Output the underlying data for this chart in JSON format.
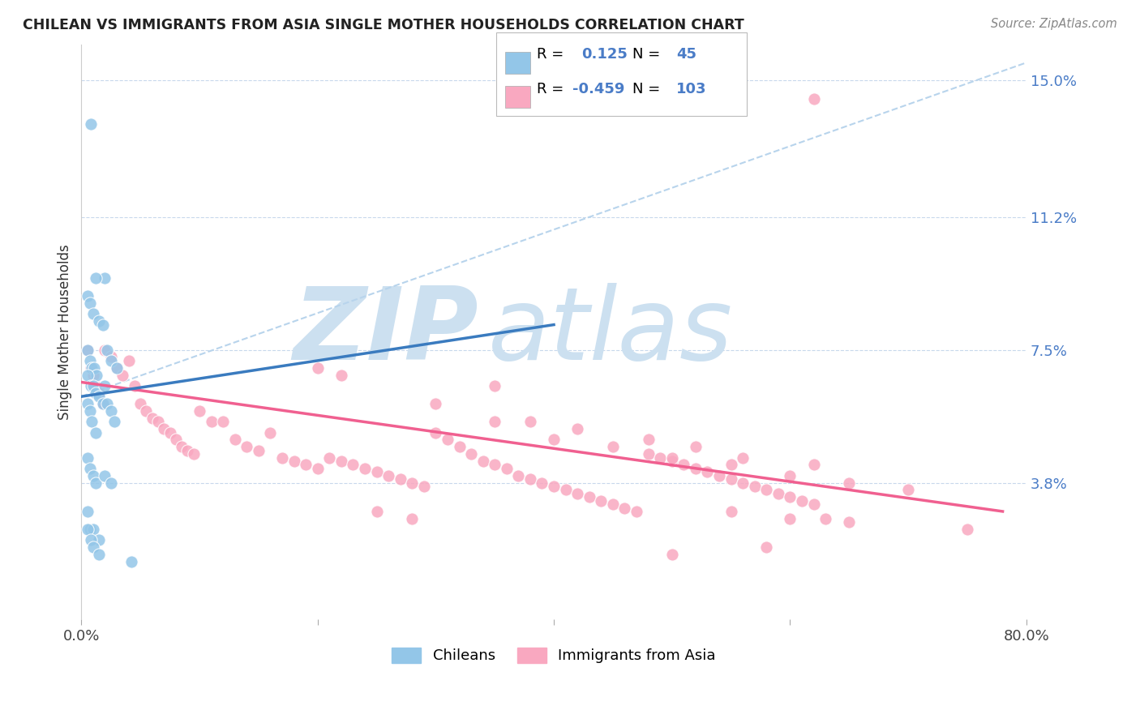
{
  "title": "CHILEAN VS IMMIGRANTS FROM ASIA SINGLE MOTHER HOUSEHOLDS CORRELATION CHART",
  "source": "Source: ZipAtlas.com",
  "ylabel": "Single Mother Households",
  "xlim": [
    0.0,
    0.8
  ],
  "ylim": [
    0.0,
    0.16
  ],
  "yticks": [
    0.038,
    0.075,
    0.112,
    0.15
  ],
  "ytick_labels": [
    "3.8%",
    "7.5%",
    "11.2%",
    "15.0%"
  ],
  "xtick_vals": [
    0.0,
    0.2,
    0.4,
    0.6,
    0.8
  ],
  "xtick_labels": [
    "0.0%",
    "",
    "",
    "",
    "80.0%"
  ],
  "blue_color": "#93c6e8",
  "pink_color": "#f9a8c0",
  "blue_line_color": "#3a7bbf",
  "pink_line_color": "#f06090",
  "dashed_line_color": "#b8d4ec",
  "watermark_zip": "ZIP",
  "watermark_atlas": "atlas",
  "watermark_color": "#cce0f0",
  "blue_line_x1": 0.0,
  "blue_line_y1": 0.062,
  "blue_line_x2": 0.4,
  "blue_line_y2": 0.082,
  "pink_line_x1": 0.0,
  "pink_line_y1": 0.066,
  "pink_line_x2": 0.78,
  "pink_line_y2": 0.03,
  "dash_line_x1": 0.0,
  "dash_line_y1": 0.062,
  "dash_line_x2": 0.8,
  "dash_line_y2": 0.155,
  "blue_scatter_x": [
    0.008,
    0.02,
    0.012,
    0.005,
    0.007,
    0.01,
    0.015,
    0.018,
    0.022,
    0.025,
    0.005,
    0.007,
    0.009,
    0.011,
    0.013,
    0.005,
    0.008,
    0.01,
    0.012,
    0.015,
    0.018,
    0.02,
    0.022,
    0.025,
    0.028,
    0.03,
    0.005,
    0.007,
    0.009,
    0.012,
    0.005,
    0.007,
    0.01,
    0.012,
    0.005,
    0.007,
    0.01,
    0.015,
    0.02,
    0.025,
    0.005,
    0.008,
    0.01,
    0.015,
    0.042
  ],
  "blue_scatter_y": [
    0.138,
    0.095,
    0.095,
    0.09,
    0.088,
    0.085,
    0.083,
    0.082,
    0.075,
    0.072,
    0.075,
    0.072,
    0.07,
    0.07,
    0.068,
    0.068,
    0.065,
    0.065,
    0.063,
    0.062,
    0.06,
    0.065,
    0.06,
    0.058,
    0.055,
    0.07,
    0.06,
    0.058,
    0.055,
    0.052,
    0.045,
    0.042,
    0.04,
    0.038,
    0.03,
    0.025,
    0.025,
    0.022,
    0.04,
    0.038,
    0.025,
    0.022,
    0.02,
    0.018,
    0.016
  ],
  "pink_scatter_x": [
    0.005,
    0.008,
    0.01,
    0.012,
    0.015,
    0.018,
    0.02,
    0.025,
    0.03,
    0.035,
    0.04,
    0.045,
    0.05,
    0.055,
    0.06,
    0.065,
    0.07,
    0.075,
    0.08,
    0.085,
    0.09,
    0.095,
    0.1,
    0.11,
    0.12,
    0.13,
    0.14,
    0.15,
    0.16,
    0.17,
    0.18,
    0.19,
    0.2,
    0.21,
    0.22,
    0.23,
    0.24,
    0.25,
    0.26,
    0.27,
    0.28,
    0.29,
    0.3,
    0.31,
    0.32,
    0.33,
    0.34,
    0.35,
    0.36,
    0.37,
    0.38,
    0.39,
    0.4,
    0.41,
    0.42,
    0.43,
    0.44,
    0.45,
    0.46,
    0.47,
    0.48,
    0.49,
    0.5,
    0.51,
    0.52,
    0.53,
    0.54,
    0.55,
    0.56,
    0.57,
    0.58,
    0.59,
    0.6,
    0.61,
    0.62,
    0.35,
    0.4,
    0.45,
    0.5,
    0.55,
    0.6,
    0.65,
    0.7,
    0.55,
    0.6,
    0.65,
    0.38,
    0.42,
    0.48,
    0.52,
    0.56,
    0.62,
    0.3,
    0.35,
    0.25,
    0.28,
    0.2,
    0.22,
    0.62,
    0.75,
    0.63,
    0.58,
    0.5
  ],
  "pink_scatter_y": [
    0.075,
    0.07,
    0.068,
    0.065,
    0.063,
    0.06,
    0.075,
    0.073,
    0.07,
    0.068,
    0.072,
    0.065,
    0.06,
    0.058,
    0.056,
    0.055,
    0.053,
    0.052,
    0.05,
    0.048,
    0.047,
    0.046,
    0.058,
    0.055,
    0.055,
    0.05,
    0.048,
    0.047,
    0.052,
    0.045,
    0.044,
    0.043,
    0.042,
    0.045,
    0.044,
    0.043,
    0.042,
    0.041,
    0.04,
    0.039,
    0.038,
    0.037,
    0.052,
    0.05,
    0.048,
    0.046,
    0.044,
    0.043,
    0.042,
    0.04,
    0.039,
    0.038,
    0.037,
    0.036,
    0.035,
    0.034,
    0.033,
    0.032,
    0.031,
    0.03,
    0.046,
    0.045,
    0.044,
    0.043,
    0.042,
    0.041,
    0.04,
    0.039,
    0.038,
    0.037,
    0.036,
    0.035,
    0.034,
    0.033,
    0.032,
    0.055,
    0.05,
    0.048,
    0.045,
    0.043,
    0.04,
    0.038,
    0.036,
    0.03,
    0.028,
    0.027,
    0.055,
    0.053,
    0.05,
    0.048,
    0.045,
    0.043,
    0.06,
    0.065,
    0.03,
    0.028,
    0.07,
    0.068,
    0.145,
    0.025,
    0.028,
    0.02,
    0.018
  ]
}
